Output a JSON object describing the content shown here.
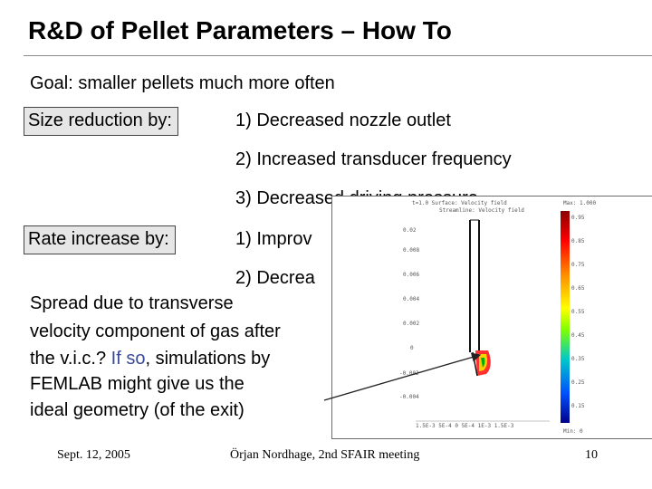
{
  "slide": {
    "title": "R&D of Pellet Parameters – How To",
    "goal": "Goal: smaller pellets much more often",
    "size_label": "Size reduction by:",
    "size_items": [
      "1)  Decreased nozzle outlet",
      "2)  Increased transducer frequency",
      "3)  Decreased driving pressure"
    ],
    "rate_label": "Rate increase by:",
    "rate_items": [
      "1)  Improv",
      "2)  Decrea"
    ],
    "spread": {
      "line1": "Spread due to transverse",
      "line2": "velocity component of gas after",
      "line3_a": "the v.i.c.? ",
      "line3_b": "If so",
      "line3_c": ", simulations by",
      "line4": "FEMLAB might give us the",
      "line5": "ideal geometry (of the exit)"
    }
  },
  "simulation": {
    "header1": "t=1.0   Surface: Velocity field",
    "header2": "Streamline: Velocity field",
    "colorbar_top": "Max: 1.000",
    "colorbar_bottom": "Min: 0",
    "y_ticks": [
      "0.02",
      "0.008",
      "0.006",
      "0.004",
      "0.002",
      "0",
      "-0.002",
      "-0.004"
    ],
    "x_ticks": "1.5E-3  5E-4  0  5E-4  1E-3  1.5E-3",
    "colorbar_ticks": [
      "0.95",
      "0.85",
      "0.75",
      "0.65",
      "0.55",
      "0.45",
      "0.35",
      "0.25",
      "0.15"
    ]
  },
  "footer": {
    "date": "Sept. 12, 2005",
    "center": "Örjan Nordhage, 2nd SFAIR meeting",
    "page": "10"
  },
  "colors": {
    "accent_blue": "#3a4a9a",
    "box_gray": "#e6e6e6"
  }
}
